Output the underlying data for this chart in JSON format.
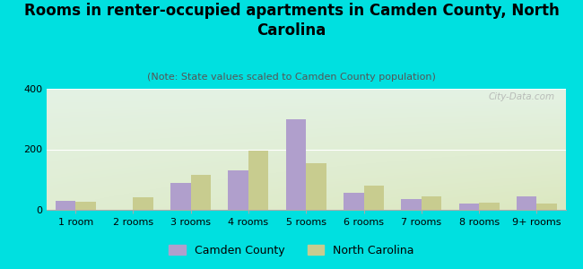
{
  "title": "Rooms in renter-occupied apartments in Camden County, North\nCarolina",
  "subtitle": "(Note: State values scaled to Camden County population)",
  "categories": [
    "1 room",
    "2 rooms",
    "3 rooms",
    "4 rooms",
    "5 rooms",
    "6 rooms",
    "7 rooms",
    "8 rooms",
    "9+ rooms"
  ],
  "camden_values": [
    30,
    0,
    90,
    130,
    300,
    55,
    35,
    22,
    45
  ],
  "nc_values": [
    28,
    42,
    115,
    195,
    155,
    80,
    45,
    25,
    20
  ],
  "camden_color": "#b09fcc",
  "nc_color": "#c8cc8f",
  "background_outer": "#00e0e0",
  "background_inner_topleft": "#e8f5e9",
  "background_inner_bottomright": "#e8eec8",
  "ylim": [
    0,
    400
  ],
  "yticks": [
    0,
    200,
    400
  ],
  "bar_width": 0.35,
  "watermark": "City-Data.com",
  "legend_camden": "Camden County",
  "legend_nc": "North Carolina",
  "title_fontsize": 12,
  "subtitle_fontsize": 8,
  "axis_fontsize": 8
}
